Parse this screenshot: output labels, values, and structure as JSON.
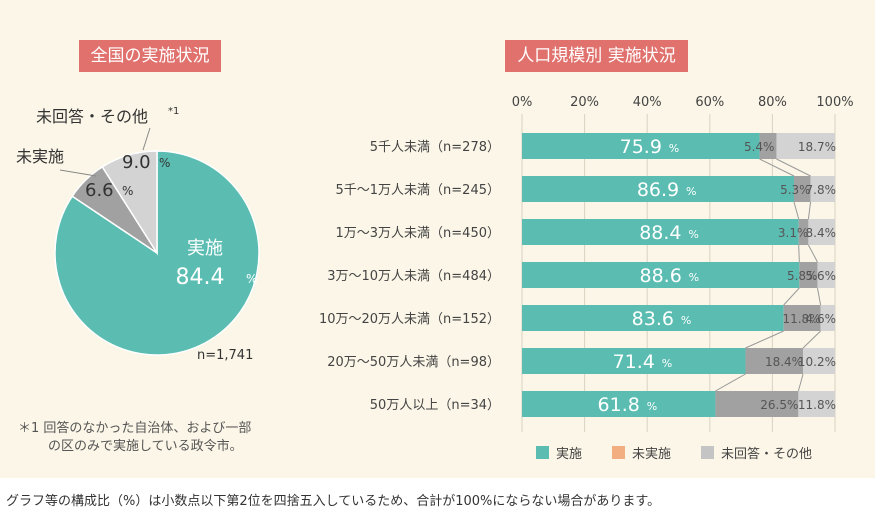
{
  "left": {
    "title": "全国の実施状況",
    "n_label": "n=1,741",
    "footnote_lines": [
      "＊1 回答のなかった自治体、および一部",
      "の区のみで実施している政令市。"
    ]
  },
  "right": {
    "title": "人口規模別 実施状況"
  },
  "footer": "グラフ等の構成比（%）は小数点以下第2位を四捨五入しているため、合計が100%にならない場合があります。",
  "colors": {
    "implemented": "#5bbdb2",
    "not_implemented": "#a1a1a1",
    "no_answer": "#d3d3d3",
    "badge": "#e0716d",
    "legend_not_implemented": "#f2ae80"
  },
  "chart_data": [
    {
      "type": "pie",
      "title": "全国の実施状況",
      "slices": [
        {
          "label": "実施",
          "value": 84.4,
          "value_text": "84.4",
          "pct": "%",
          "color": "#5bbdb2"
        },
        {
          "label": "未実施",
          "value": 6.6,
          "value_text": "6.6",
          "pct": "%",
          "color": "#a1a1a1"
        },
        {
          "label": "未回答・その他",
          "label_sup": "*1",
          "value": 9.0,
          "value_text": "9.0",
          "pct": "%",
          "color": "#d3d3d3"
        }
      ]
    },
    {
      "type": "bar",
      "orientation": "horizontal",
      "stacked": true,
      "title": "人口規模別 実施状況",
      "xlim": [
        0,
        100
      ],
      "xticks": [
        "0%",
        "20%",
        "40%",
        "60%",
        "80%",
        "100%"
      ],
      "categories": [
        "5千人未満（n=278）",
        "5千～1万人未満（n=245）",
        "1万～3万人未満（n=450）",
        "3万～10万人未満（n=484）",
        "10万～20万人未満（n=152）",
        "20万～50万人未満（n=98）",
        "50万人以上（n=34）"
      ],
      "series": [
        {
          "name": "実施",
          "color": "#5bbdb2",
          "values": [
            75.9,
            86.9,
            88.4,
            88.6,
            83.6,
            71.4,
            61.8
          ],
          "labels": [
            "75.9",
            "86.9",
            "88.4",
            "88.6",
            "83.6",
            "71.4",
            "61.8"
          ]
        },
        {
          "name": "未実施",
          "color": "#a1a1a1",
          "values": [
            5.4,
            5.3,
            3.1,
            5.8,
            11.8,
            18.4,
            26.5
          ],
          "labels": [
            "5.4%",
            "5.3%",
            "3.1%",
            "5.8%",
            "11.8%",
            "18.4%",
            "26.5%"
          ]
        },
        {
          "name": "未回答・その他",
          "color": "#d3d3d3",
          "values": [
            18.7,
            7.8,
            8.4,
            5.6,
            4.6,
            10.2,
            11.8
          ],
          "labels": [
            "18.7%",
            "7.8%",
            "8.4%",
            "5.6%",
            "4.6%",
            "10.2%",
            "11.8%"
          ]
        }
      ],
      "pct_suffix": "%",
      "legend": [
        {
          "label": "実施",
          "color": "#5bbdb2"
        },
        {
          "label": "未実施",
          "color": "#f2ae80"
        },
        {
          "label": "未回答・その他",
          "color": "#c4c4c4"
        }
      ]
    }
  ]
}
